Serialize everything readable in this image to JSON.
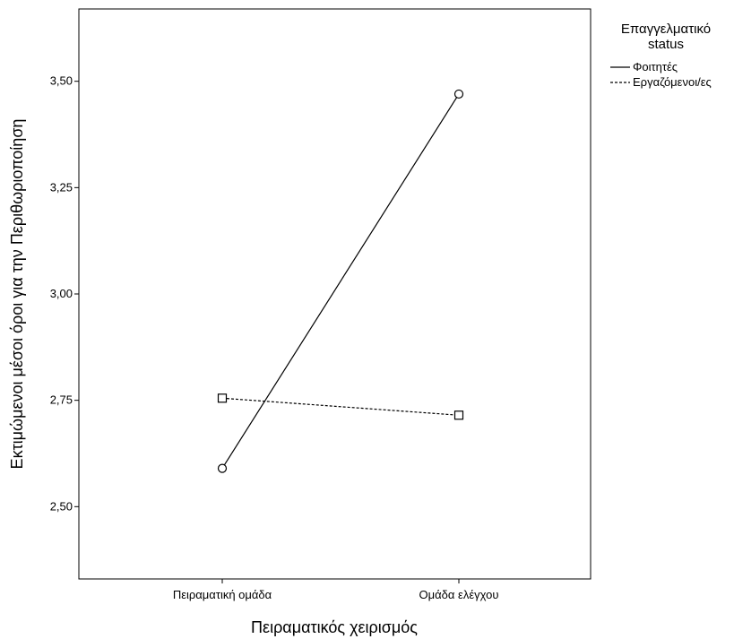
{
  "chart_data": {
    "type": "line",
    "xlabel": "Πειραματικός χειρισμός",
    "ylabel": "Εκτιμώμενοι μέσοι όροι για την Περιθωριοποίηση",
    "categories": [
      "Πειραματική ομάδα",
      "Ομάδα ελέγχου"
    ],
    "ylim": [
      2.33,
      3.67
    ],
    "yticks": [
      2.5,
      2.75,
      3.0,
      3.25,
      3.5
    ],
    "ytick_labels": [
      "2,50",
      "2,75",
      "3,00",
      "3,25",
      "3,50"
    ],
    "grid": false,
    "legend": {
      "title_lines": [
        "Επαγγελματικό",
        "status"
      ],
      "placement": "right"
    },
    "series": [
      {
        "name": "Φοιτητές",
        "values": [
          2.59,
          3.47
        ],
        "line": "solid",
        "marker": "circle",
        "color": "#000000"
      },
      {
        "name": "Εργαζόμενοι/ες",
        "values": [
          2.755,
          2.715
        ],
        "line": "dashed",
        "marker": "square",
        "color": "#000000"
      }
    ]
  }
}
